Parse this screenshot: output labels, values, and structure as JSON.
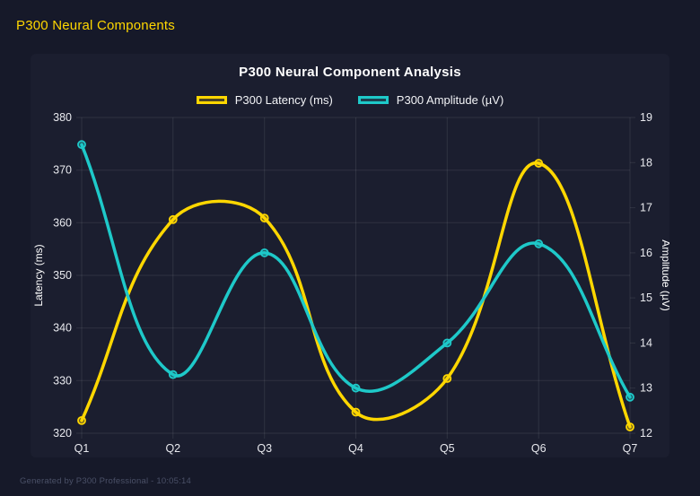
{
  "page": {
    "title": "P300 Neural Components",
    "footer": "Generated by P300 Professional - 10:05:14"
  },
  "colors": {
    "page_bg": "#161929",
    "card_bg": "#1b1e2f",
    "latency": "#ffd700",
    "amplitude": "#1ec9c9",
    "grid": "rgba(255,255,255,0.09)",
    "tick_text": "#e8e9ee",
    "axis_title_text": "#ffffff",
    "footer_text": "#4a5067"
  },
  "chart_data": {
    "type": "line",
    "title": "P300 Neural Component Analysis",
    "categories": [
      "Q1",
      "Q2",
      "Q3",
      "Q4",
      "Q5",
      "Q6",
      "Q7"
    ],
    "series": [
      {
        "name": "P300 Latency (ms)",
        "axis": "left",
        "color": "#ffd700",
        "values": [
          322.4,
          360.6,
          360.9,
          324.0,
          330.4,
          371.3,
          321.2
        ]
      },
      {
        "name": "P300 Amplitude (µV)",
        "axis": "right",
        "color": "#1ec9c9",
        "values": [
          18.4,
          13.3,
          16.0,
          13.0,
          14.0,
          16.2,
          12.8
        ]
      }
    ],
    "left_axis": {
      "label": "Latency (ms)",
      "min": 320,
      "max": 380,
      "step": 10
    },
    "right_axis": {
      "label": "Amplitude (µV)",
      "min": 12,
      "max": 19,
      "step": 1
    },
    "grid": true,
    "legend_position": "top",
    "line_tension": 0.4
  }
}
